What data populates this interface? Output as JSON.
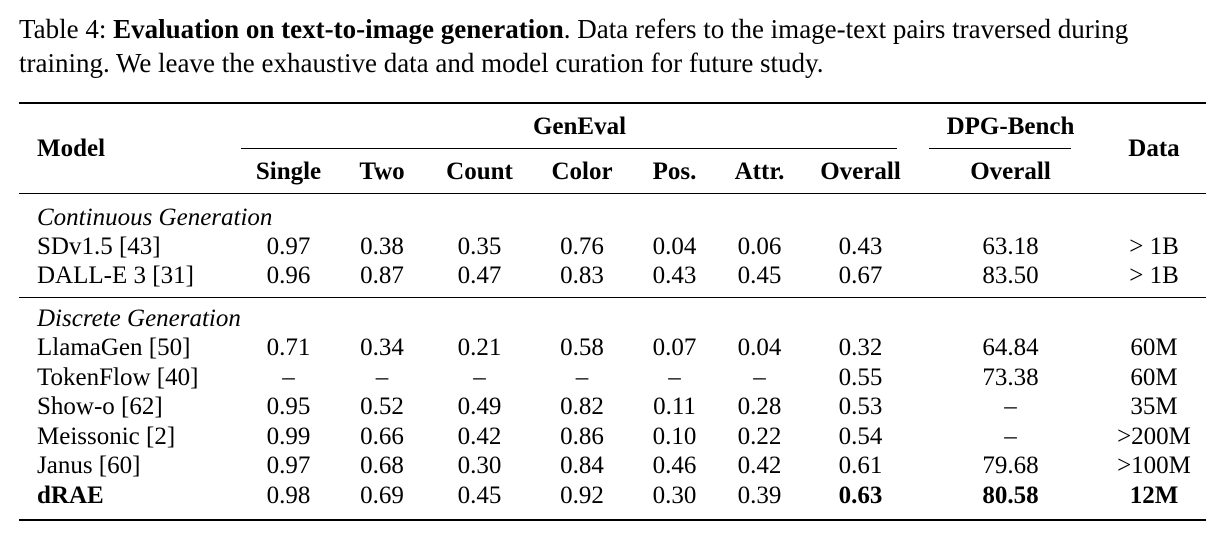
{
  "caption": {
    "prefix": "Table 4: ",
    "title": "Evaluation on text-to-image generation",
    "text": ". Data refers to the image-text pairs traversed during training. We leave the exhaustive data and model curation for future study."
  },
  "header": {
    "model": "Model",
    "geneval": "GenEval",
    "dpg": "DPG-Bench",
    "data": "Data",
    "sub": [
      "Single",
      "Two",
      "Count",
      "Color",
      "Pos.",
      "Attr.",
      "Overall"
    ],
    "dpg_sub": "Overall"
  },
  "sections": [
    {
      "title": "Continuous Generation",
      "rows": [
        {
          "model": "SDv1.5 [43]",
          "single": "0.97",
          "two": "0.38",
          "count": "0.35",
          "color": "0.76",
          "pos": "0.04",
          "attr": "0.06",
          "overall": "0.43",
          "dpg": "63.18",
          "data": "> 1B"
        },
        {
          "model": "DALL-E 3 [31]",
          "single": "0.96",
          "two": "0.87",
          "count": "0.47",
          "color": "0.83",
          "pos": "0.43",
          "attr": "0.45",
          "overall": "0.67",
          "dpg": "83.50",
          "data": "> 1B"
        }
      ]
    },
    {
      "title": "Discrete Generation",
      "rows": [
        {
          "model": "LlamaGen [50]",
          "single": "0.71",
          "two": "0.34",
          "count": "0.21",
          "color": "0.58",
          "pos": "0.07",
          "attr": "0.04",
          "overall": "0.32",
          "dpg": "64.84",
          "data": "60M"
        },
        {
          "model": "TokenFlow [40]",
          "single": "–",
          "two": "–",
          "count": "–",
          "color": "–",
          "pos": "–",
          "attr": "–",
          "overall": "0.55",
          "dpg": "73.38",
          "data": "60M"
        },
        {
          "model": "Show-o [62]",
          "single": "0.95",
          "two": "0.52",
          "count": "0.49",
          "color": "0.82",
          "pos": "0.11",
          "attr": "0.28",
          "overall": "0.53",
          "dpg": "–",
          "data": "35M"
        },
        {
          "model": "Meissonic [2]",
          "single": "0.99",
          "two": "0.66",
          "count": "0.42",
          "color": "0.86",
          "pos": "0.10",
          "attr": "0.22",
          "overall": "0.54",
          "dpg": "–",
          "data": ">200M"
        },
        {
          "model": "Janus [60]",
          "single": "0.97",
          "two": "0.68",
          "count": "0.30",
          "color": "0.84",
          "pos": "0.46",
          "attr": "0.42",
          "overall": "0.61",
          "dpg": "79.68",
          "data": ">100M"
        },
        {
          "model": "dRAE",
          "single": "0.98",
          "two": "0.69",
          "count": "0.45",
          "color": "0.92",
          "pos": "0.30",
          "attr": "0.39",
          "overall": "0.63",
          "dpg": "80.58",
          "data": "12M"
        }
      ]
    }
  ]
}
